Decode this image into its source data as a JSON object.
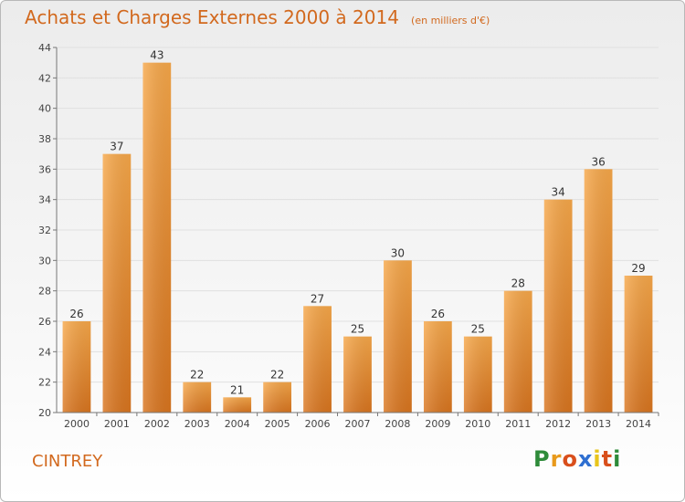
{
  "header": {
    "title": "Achats et Charges Externes 2000 à 2014",
    "subtitle": "(en milliers d'€)"
  },
  "footer": {
    "commune": "CINTREY",
    "logo_text": "Proxiti",
    "logo_colors": [
      "#2e8b3a",
      "#e89a1c",
      "#d94f1c",
      "#2e6fd1",
      "#e8c51c",
      "#d94f1c",
      "#2e8b3a"
    ]
  },
  "colors": {
    "bar_top": "#f7a84a",
    "bar_bottom": "#d9751f",
    "title": "#d2691e",
    "grid": "#e0e0e0"
  },
  "chart_data": {
    "type": "bar",
    "categories": [
      "2000",
      "2001",
      "2002",
      "2003",
      "2004",
      "2005",
      "2006",
      "2007",
      "2008",
      "2009",
      "2010",
      "2011",
      "2012",
      "2013",
      "2014"
    ],
    "values": [
      26,
      37,
      43,
      22,
      21,
      22,
      27,
      25,
      30,
      26,
      25,
      28,
      34,
      36,
      29
    ],
    "title": "Achats et Charges Externes 2000 à 2014",
    "subtitle": "(en milliers d'€)",
    "ylim": [
      20,
      44
    ],
    "yticks": [
      20,
      22,
      24,
      26,
      28,
      30,
      32,
      34,
      36,
      38,
      40,
      42,
      44
    ],
    "grid": true,
    "data_labels": true
  }
}
